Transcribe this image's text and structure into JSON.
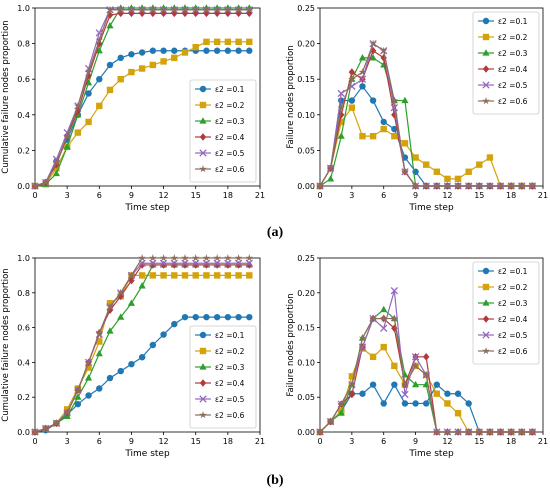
{
  "panel_labels": [
    "(a)",
    "(b)"
  ],
  "chart_data": [
    {
      "type": "line",
      "xlabel": "Time step",
      "ylabel": "Cumulative failure nodes proportion",
      "xlim": [
        0,
        21
      ],
      "ylim": [
        0,
        1.0
      ],
      "xticks": [
        0,
        3,
        6,
        9,
        12,
        15,
        18,
        21
      ],
      "yticks": [
        0.0,
        0.2,
        0.4,
        0.6,
        0.8,
        1.0
      ],
      "grid": false,
      "legend": "lower-right",
      "x": [
        0,
        1,
        2,
        3,
        4,
        5,
        6,
        7,
        8,
        9,
        10,
        11,
        12,
        13,
        14,
        15,
        16,
        17,
        18,
        19,
        20
      ],
      "series": [
        {
          "name": "ε2 =0.1",
          "color": "#1f77b4",
          "marker": "o",
          "values": [
            0,
            0.02,
            0.14,
            0.26,
            0.4,
            0.52,
            0.6,
            0.68,
            0.72,
            0.74,
            0.75,
            0.76,
            0.76,
            0.76,
            0.76,
            0.76,
            0.76,
            0.76,
            0.76,
            0.76,
            0.76
          ]
        },
        {
          "name": "ε2 =0.2",
          "color": "#d4a20a",
          "marker": "s",
          "values": [
            0,
            0.01,
            0.1,
            0.22,
            0.3,
            0.36,
            0.45,
            0.54,
            0.6,
            0.64,
            0.66,
            0.68,
            0.7,
            0.72,
            0.75,
            0.78,
            0.81,
            0.81,
            0.81,
            0.81,
            0.81
          ]
        },
        {
          "name": "ε2 =0.3",
          "color": "#2ca02c",
          "marker": "^",
          "values": [
            0,
            0.01,
            0.07,
            0.22,
            0.4,
            0.58,
            0.76,
            0.9,
            1.0,
            1.0,
            1.0,
            1.0,
            1.0,
            1.0,
            1.0,
            1.0,
            1.0,
            1.0,
            1.0,
            1.0,
            1.0
          ]
        },
        {
          "name": "ε2 =0.4",
          "color": "#b33a3a",
          "marker": "D",
          "values": [
            0,
            0.02,
            0.12,
            0.28,
            0.42,
            0.62,
            0.8,
            0.96,
            0.97,
            0.97,
            0.97,
            0.97,
            0.97,
            0.97,
            0.97,
            0.97,
            0.97,
            0.97,
            0.97,
            0.97,
            0.97
          ]
        },
        {
          "name": "ε2 =0.5",
          "color": "#9467bd",
          "marker": "x",
          "values": [
            0,
            0.02,
            0.15,
            0.3,
            0.45,
            0.66,
            0.86,
            0.99,
            0.99,
            0.99,
            0.99,
            0.99,
            0.99,
            0.99,
            0.99,
            0.99,
            0.99,
            0.99,
            0.99,
            0.99,
            0.99
          ]
        },
        {
          "name": "ε2 =0.6",
          "color": "#8c6d5a",
          "marker": "*",
          "values": [
            0,
            0.02,
            0.13,
            0.28,
            0.45,
            0.64,
            0.82,
            0.99,
            0.99,
            0.99,
            0.99,
            0.99,
            0.99,
            0.99,
            0.99,
            0.99,
            0.99,
            0.99,
            0.99,
            0.99,
            0.99
          ]
        }
      ]
    },
    {
      "type": "line",
      "xlabel": "Time step",
      "ylabel": "Failure nodes proportion",
      "xlim": [
        0,
        21
      ],
      "ylim": [
        0,
        0.25
      ],
      "xticks": [
        0,
        3,
        6,
        9,
        12,
        15,
        18,
        21
      ],
      "yticks": [
        0.0,
        0.05,
        0.1,
        0.15,
        0.2,
        0.25
      ],
      "grid": false,
      "legend": "upper-right",
      "x": [
        0,
        1,
        2,
        3,
        4,
        5,
        6,
        7,
        8,
        9,
        10,
        11,
        12,
        13,
        14,
        15,
        16,
        17,
        18,
        19,
        20
      ],
      "series": [
        {
          "name": "ε2 =0.1",
          "color": "#1f77b4",
          "marker": "o",
          "values": [
            0,
            0.025,
            0.12,
            0.12,
            0.14,
            0.12,
            0.09,
            0.08,
            0.04,
            0.02,
            0,
            0,
            0,
            0,
            0,
            0,
            0,
            0,
            0,
            0,
            0
          ]
        },
        {
          "name": "ε2 =0.2",
          "color": "#d4a20a",
          "marker": "s",
          "values": [
            0,
            0.025,
            0.09,
            0.11,
            0.07,
            0.07,
            0.08,
            0.07,
            0.06,
            0.04,
            0.03,
            0.02,
            0.01,
            0.01,
            0.02,
            0.03,
            0.04,
            0,
            0,
            0,
            0
          ]
        },
        {
          "name": "ε2 =0.3",
          "color": "#2ca02c",
          "marker": "^",
          "values": [
            0,
            0.01,
            0.07,
            0.15,
            0.18,
            0.18,
            0.17,
            0.12,
            0.12,
            0,
            0,
            0,
            0,
            0,
            0,
            0,
            0,
            0,
            0,
            0,
            0
          ]
        },
        {
          "name": "ε2 =0.4",
          "color": "#b33a3a",
          "marker": "D",
          "values": [
            0,
            0.025,
            0.1,
            0.16,
            0.15,
            0.19,
            0.18,
            0.1,
            0.02,
            0,
            0,
            0,
            0,
            0,
            0,
            0,
            0,
            0,
            0,
            0,
            0
          ]
        },
        {
          "name": "ε2 =0.5",
          "color": "#9467bd",
          "marker": "x",
          "values": [
            0,
            0.025,
            0.13,
            0.14,
            0.15,
            0.2,
            0.19,
            0.11,
            0.02,
            0,
            0,
            0,
            0,
            0,
            0,
            0,
            0,
            0,
            0,
            0,
            0
          ]
        },
        {
          "name": "ε2 =0.6",
          "color": "#8c6d5a",
          "marker": "*",
          "values": [
            0,
            0.025,
            0.11,
            0.15,
            0.16,
            0.2,
            0.19,
            0.12,
            0.02,
            0,
            0,
            0,
            0,
            0,
            0,
            0,
            0,
            0,
            0,
            0,
            0
          ]
        }
      ]
    },
    {
      "type": "line",
      "xlabel": "Time step",
      "ylabel": "Cumulative failure nodes proportion",
      "xlim": [
        0,
        21
      ],
      "ylim": [
        0,
        1.0
      ],
      "xticks": [
        0,
        3,
        6,
        9,
        12,
        15,
        18,
        21
      ],
      "yticks": [
        0.0,
        0.2,
        0.4,
        0.6,
        0.8,
        1.0
      ],
      "grid": false,
      "legend": "lower-right",
      "x": [
        0,
        1,
        2,
        3,
        4,
        5,
        6,
        7,
        8,
        9,
        10,
        11,
        12,
        13,
        14,
        15,
        16,
        17,
        18,
        19,
        20
      ],
      "series": [
        {
          "name": "ε2 =0.1",
          "color": "#1f77b4",
          "marker": "o",
          "values": [
            0,
            0.01,
            0.05,
            0.1,
            0.16,
            0.21,
            0.25,
            0.31,
            0.35,
            0.39,
            0.43,
            0.5,
            0.56,
            0.62,
            0.66,
            0.66,
            0.66,
            0.66,
            0.66,
            0.66,
            0.66
          ]
        },
        {
          "name": "ε2 =0.2",
          "color": "#d4a20a",
          "marker": "s",
          "values": [
            0,
            0.02,
            0.05,
            0.13,
            0.25,
            0.37,
            0.52,
            0.74,
            0.78,
            0.9,
            0.9,
            0.9,
            0.9,
            0.9,
            0.9,
            0.9,
            0.9,
            0.9,
            0.9,
            0.9,
            0.9
          ]
        },
        {
          "name": "ε2 =0.3",
          "color": "#2ca02c",
          "marker": "^",
          "values": [
            0,
            0.02,
            0.05,
            0.09,
            0.2,
            0.31,
            0.45,
            0.58,
            0.66,
            0.74,
            0.84,
            0.96,
            0.96,
            0.96,
            0.96,
            0.96,
            0.96,
            0.96,
            0.96,
            0.96,
            0.96
          ]
        },
        {
          "name": "ε2 =0.4",
          "color": "#b33a3a",
          "marker": "D",
          "values": [
            0,
            0.02,
            0.05,
            0.11,
            0.24,
            0.4,
            0.57,
            0.7,
            0.78,
            0.87,
            0.96,
            0.96,
            0.96,
            0.96,
            0.96,
            0.96,
            0.96,
            0.96,
            0.96,
            0.96,
            0.96
          ]
        },
        {
          "name": "ε2 =0.5",
          "color": "#9467bd",
          "marker": "x",
          "values": [
            0,
            0.02,
            0.05,
            0.11,
            0.24,
            0.4,
            0.56,
            0.72,
            0.8,
            0.9,
            0.97,
            0.97,
            0.97,
            0.97,
            0.97,
            0.97,
            0.97,
            0.97,
            0.97,
            0.97,
            0.97
          ]
        },
        {
          "name": "ε2 =0.6",
          "color": "#8c6d5a",
          "marker": "*",
          "values": [
            0,
            0.02,
            0.05,
            0.11,
            0.24,
            0.4,
            0.57,
            0.72,
            0.8,
            0.9,
            1.0,
            1.0,
            1.0,
            1.0,
            1.0,
            1.0,
            1.0,
            1.0,
            1.0,
            1.0,
            1.0
          ]
        }
      ]
    },
    {
      "type": "line",
      "xlabel": "Time step",
      "ylabel": "Failure nodes proportion",
      "xlim": [
        0,
        21
      ],
      "ylim": [
        0,
        0.25
      ],
      "xticks": [
        0,
        3,
        6,
        9,
        12,
        15,
        18,
        21
      ],
      "yticks": [
        0.0,
        0.05,
        0.1,
        0.15,
        0.2,
        0.25
      ],
      "grid": false,
      "legend": "upper-right",
      "x": [
        0,
        1,
        2,
        3,
        4,
        5,
        6,
        7,
        8,
        9,
        10,
        11,
        12,
        13,
        14,
        15,
        16,
        17,
        18,
        19,
        20
      ],
      "series": [
        {
          "name": "ε2 =0.1",
          "color": "#1f77b4",
          "marker": "o",
          "values": [
            0,
            0.015,
            0.03,
            0.055,
            0.055,
            0.068,
            0.041,
            0.068,
            0.041,
            0.041,
            0.041,
            0.068,
            0.055,
            0.055,
            0.041,
            0,
            0,
            0,
            0,
            0,
            0
          ]
        },
        {
          "name": "ε2 =0.2",
          "color": "#d4a20a",
          "marker": "s",
          "values": [
            0,
            0.015,
            0.03,
            0.08,
            0.12,
            0.108,
            0.122,
            0.095,
            0.068,
            0.095,
            0.082,
            0.055,
            0.041,
            0.027,
            0,
            0,
            0,
            0,
            0,
            0,
            0
          ]
        },
        {
          "name": "ε2 =0.3",
          "color": "#2ca02c",
          "marker": "^",
          "values": [
            0,
            0.015,
            0.027,
            0.068,
            0.135,
            0.163,
            0.176,
            0.163,
            0.082,
            0.068,
            0.068,
            0,
            0,
            0,
            0,
            0,
            0,
            0,
            0,
            0,
            0
          ]
        },
        {
          "name": "ε2 =0.4",
          "color": "#b33a3a",
          "marker": "D",
          "values": [
            0,
            0.015,
            0.04,
            0.054,
            0.122,
            0.163,
            0.163,
            0.149,
            0.068,
            0.108,
            0.108,
            0,
            0,
            0,
            0,
            0,
            0,
            0,
            0,
            0,
            0
          ]
        },
        {
          "name": "ε2 =0.5",
          "color": "#9467bd",
          "marker": "x",
          "values": [
            0,
            0.015,
            0.04,
            0.068,
            0.122,
            0.163,
            0.149,
            0.203,
            0.054,
            0.108,
            0.082,
            0,
            0,
            0,
            0,
            0,
            0,
            0,
            0,
            0,
            0
          ]
        },
        {
          "name": "ε2 =0.6",
          "color": "#8c6d5a",
          "marker": "*",
          "values": [
            0,
            0.015,
            0.04,
            0.068,
            0.135,
            0.163,
            0.163,
            0.163,
            0.068,
            0.095,
            0.082,
            0,
            0,
            0,
            0,
            0,
            0,
            0,
            0,
            0,
            0
          ]
        }
      ]
    }
  ]
}
